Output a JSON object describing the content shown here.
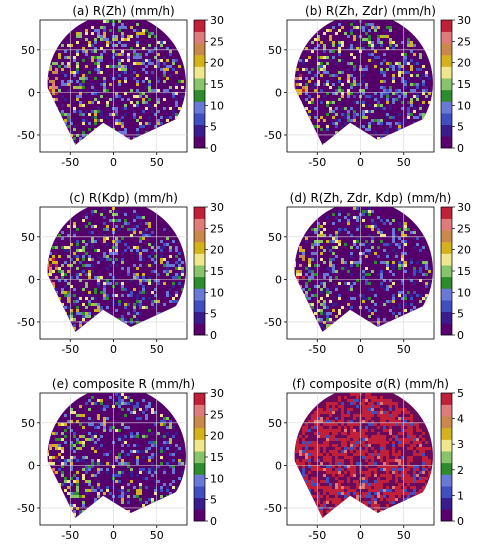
{
  "figure": {
    "colormap": {
      "rain_bands": [
        "#5a006e",
        "#3a1c8c",
        "#3f4fbf",
        "#6a78d6",
        "#2e8b2e",
        "#88c56a",
        "#f0e68c",
        "#d4b21c",
        "#c8894a",
        "#e07b7b",
        "#c0203a"
      ],
      "sigma_bands": [
        "#5a006e",
        "#3a1c8c",
        "#3f4fbf",
        "#6a78d6",
        "#2e8b2e",
        "#88c56a",
        "#f0e68c",
        "#d4b21c",
        "#c8894a",
        "#e07b7b",
        "#c0203a"
      ]
    }
  },
  "chart_data": [
    {
      "type": "heatmap",
      "panel": "(a)",
      "title": "(a)  R(Zh) (mm/h)",
      "xticks": [
        "-50",
        "0",
        "50"
      ],
      "yticks": [
        "50",
        "0",
        "-50"
      ],
      "xlim": [
        -85,
        85
      ],
      "ylim": [
        -70,
        85
      ],
      "grid": true,
      "colorbar": {
        "range": [
          0,
          30
        ],
        "ticks": [
          "30",
          "25",
          "20",
          "15",
          "10",
          "5",
          "0"
        ]
      }
    },
    {
      "type": "heatmap",
      "panel": "(b)",
      "title": "(b)  R(Zh, Zdr) (mm/h)",
      "xticks": [
        "-50",
        "0",
        "50"
      ],
      "yticks": [
        "50",
        "0",
        "-50"
      ],
      "xlim": [
        -85,
        85
      ],
      "ylim": [
        -70,
        85
      ],
      "grid": true,
      "colorbar": {
        "range": [
          0,
          30
        ],
        "ticks": [
          "30",
          "25",
          "20",
          "15",
          "10",
          "5",
          "0"
        ]
      }
    },
    {
      "type": "heatmap",
      "panel": "(c)",
      "title": "(c)  R(Kdp) (mm/h)",
      "xticks": [
        "-50",
        "0",
        "50"
      ],
      "yticks": [
        "50",
        "0",
        "-50"
      ],
      "xlim": [
        -85,
        85
      ],
      "ylim": [
        -70,
        85
      ],
      "grid": true,
      "colorbar": {
        "range": [
          0,
          30
        ],
        "ticks": [
          "30",
          "25",
          "20",
          "15",
          "10",
          "5",
          "0"
        ]
      }
    },
    {
      "type": "heatmap",
      "panel": "(d)",
      "title": "(d)  R(Zh, Zdr, Kdp) (mm/h)",
      "xticks": [
        "-50",
        "0",
        "50"
      ],
      "yticks": [
        "50",
        "0",
        "-50"
      ],
      "xlim": [
        -85,
        85
      ],
      "ylim": [
        -70,
        85
      ],
      "grid": true,
      "colorbar": {
        "range": [
          0,
          30
        ],
        "ticks": [
          "30",
          "25",
          "20",
          "15",
          "10",
          "5",
          "0"
        ]
      }
    },
    {
      "type": "heatmap",
      "panel": "(e)",
      "title": "(e)  composite R (mm/h)",
      "xticks": [
        "-50",
        "0",
        "50"
      ],
      "yticks": [
        "50",
        "0",
        "-50"
      ],
      "xlim": [
        -85,
        85
      ],
      "ylim": [
        -70,
        85
      ],
      "grid": true,
      "colorbar": {
        "range": [
          0,
          30
        ],
        "ticks": [
          "30",
          "25",
          "20",
          "15",
          "10",
          "5",
          "0"
        ]
      }
    },
    {
      "type": "heatmap",
      "panel": "(f)",
      "title": "(f)  composite σ(R) (mm/h)",
      "xticks": [
        "-50",
        "0",
        "50"
      ],
      "yticks": [
        "50",
        "0",
        "-50"
      ],
      "xlim": [
        -85,
        85
      ],
      "ylim": [
        -70,
        85
      ],
      "grid": true,
      "colorbar": {
        "range": [
          0,
          5
        ],
        "ticks": [
          "5",
          "4",
          "3",
          "2",
          "1",
          "0"
        ]
      }
    }
  ]
}
